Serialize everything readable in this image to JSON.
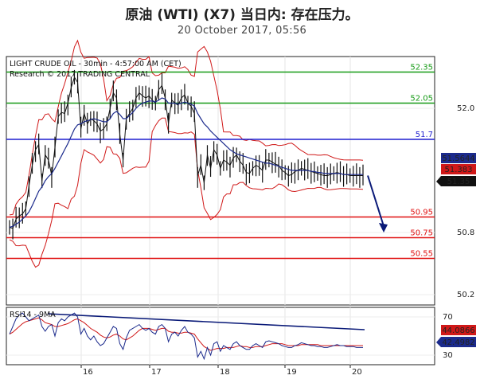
{
  "header": {
    "title": "原油 (WTI) (X7) 当日内: 存在压力。",
    "date": "20 October 2017, 05:56"
  },
  "chart_data": [
    {
      "type": "line",
      "title": "LIGHT CRUDE OIL - 30min - 4:57:00 AM (CET)",
      "subtitle": "Research © 2017 TRADING CENTRAL",
      "x_tick_labels": [
        "16",
        "17",
        "18",
        "19",
        "20"
      ],
      "y_tick_labels": [
        "52.0",
        "50.8",
        "50.2"
      ],
      "ylim": [
        50.1,
        52.5
      ],
      "grid": true,
      "levels": [
        {
          "label": "52.35",
          "value": 52.35,
          "color": "#169a16"
        },
        {
          "label": "52.05",
          "value": 52.05,
          "color": "#169a16"
        },
        {
          "label": "51.7",
          "value": 51.7,
          "color": "#1f1fcf"
        },
        {
          "label": "50.95",
          "value": 50.95,
          "color": "#e01010"
        },
        {
          "label": "50.75",
          "value": 50.75,
          "color": "#e01010"
        },
        {
          "label": "50.55",
          "value": 50.55,
          "color": "#e01010"
        }
      ],
      "price_badges": [
        {
          "label": "51.5644",
          "color": "#1b2a8c"
        },
        {
          "label": "51.383",
          "color": "#d01818"
        },
        {
          "label": "51.35",
          "color": "#111111"
        }
      ],
      "price_x": [
        0,
        1,
        2,
        3,
        4,
        5,
        6,
        7,
        8,
        9,
        10,
        11,
        12,
        13,
        14,
        15,
        16,
        17,
        18,
        19,
        20,
        21,
        22,
        23,
        24,
        25,
        26,
        27,
        28,
        29,
        30,
        31,
        32,
        33,
        34,
        35,
        36,
        37,
        38,
        39,
        40,
        41,
        42,
        43,
        44,
        45,
        46,
        47,
        48,
        49,
        50,
        51,
        52,
        53,
        54,
        55,
        56,
        57,
        58,
        59,
        60,
        61,
        62,
        63,
        64,
        65,
        66,
        67,
        68,
        69,
        70,
        71,
        72,
        73,
        74,
        75,
        76,
        77,
        78,
        79,
        80,
        81,
        82,
        83,
        84,
        85,
        86,
        87,
        88,
        89,
        90,
        91,
        92,
        93,
        94,
        95,
        96,
        97,
        98,
        99,
        100,
        101,
        102,
        103,
        104,
        105,
        106,
        107,
        108,
        109
      ],
      "price_close": [
        50.85,
        50.84,
        50.93,
        50.96,
        50.98,
        51.03,
        51.25,
        51.45,
        51.6,
        51.65,
        51.3,
        51.55,
        51.5,
        51.35,
        51.62,
        51.92,
        51.96,
        51.95,
        52.05,
        52.2,
        52.3,
        52.25,
        51.8,
        51.95,
        51.85,
        51.9,
        51.88,
        51.85,
        51.78,
        51.8,
        51.85,
        52.0,
        52.15,
        52.1,
        51.75,
        51.5,
        51.9,
        51.95,
        52.0,
        52.1,
        52.15,
        52.12,
        52.1,
        52.12,
        52.08,
        52.05,
        52.18,
        52.22,
        52.1,
        51.85,
        52.08,
        52.05,
        52.03,
        52.1,
        52.13,
        52.05,
        52.02,
        51.95,
        51.35,
        51.45,
        51.28,
        51.55,
        51.42,
        51.6,
        51.55,
        51.42,
        51.5,
        51.48,
        51.45,
        51.52,
        51.55,
        51.49,
        51.45,
        51.38,
        51.37,
        51.42,
        51.45,
        51.43,
        51.4,
        51.5,
        51.5,
        51.48,
        51.46,
        51.45,
        51.4,
        51.38,
        51.35,
        51.36,
        51.39,
        51.4,
        51.42,
        51.41,
        51.4,
        51.39,
        51.38,
        51.37,
        51.36,
        51.35,
        51.35,
        51.36,
        51.37,
        51.38,
        51.37,
        51.36,
        51.36,
        51.35,
        51.35,
        51.35,
        51.35,
        51.35
      ],
      "ma_close": [
        50.85,
        50.86,
        50.88,
        50.9,
        50.93,
        50.96,
        51.0,
        51.06,
        51.13,
        51.2,
        51.24,
        51.3,
        51.34,
        51.37,
        51.42,
        51.48,
        51.54,
        51.6,
        51.66,
        51.73,
        51.8,
        51.84,
        51.85,
        51.87,
        51.88,
        51.89,
        51.9,
        51.89,
        51.88,
        51.87,
        51.87,
        51.9,
        51.95,
        51.97,
        51.94,
        51.9,
        51.9,
        51.93,
        51.96,
        52.0,
        52.03,
        52.05,
        52.06,
        52.07,
        52.07,
        52.06,
        52.08,
        52.1,
        52.09,
        52.05,
        52.05,
        52.05,
        52.04,
        52.05,
        52.06,
        52.05,
        52.04,
        52.02,
        51.95,
        51.9,
        51.85,
        51.82,
        51.78,
        51.75,
        51.72,
        51.69,
        51.66,
        51.63,
        51.6,
        51.58,
        51.56,
        51.55,
        51.54,
        51.53,
        51.52,
        51.51,
        51.5,
        51.49,
        51.48,
        51.47,
        51.47,
        51.46,
        51.45,
        51.44,
        51.43,
        51.42,
        51.41,
        51.4,
        51.4,
        51.4,
        51.4,
        51.4,
        51.4,
        51.39,
        51.39,
        51.38,
        51.38,
        51.37,
        51.37,
        51.37,
        51.37,
        51.37,
        51.37,
        51.36,
        51.36,
        51.36,
        51.36,
        51.36,
        51.36,
        51.36
      ],
      "projection": {
        "from": 51.35,
        "to": 50.8
      },
      "rsi": {
        "label": "RSI14 - 9MA",
        "y_tick_labels": [
          "70",
          "30"
        ],
        "ylim": [
          20,
          80
        ],
        "badges": [
          {
            "label": "44.0866",
            "color": "#d01818"
          },
          {
            "label": "42.4982",
            "color": "#1b2a8c"
          }
        ],
        "rsi_values": [
          52,
          60,
          68,
          72,
          74,
          70,
          66,
          68,
          70,
          72,
          60,
          55,
          60,
          62,
          50,
          64,
          68,
          66,
          70,
          72,
          74,
          70,
          52,
          58,
          50,
          46,
          50,
          44,
          40,
          42,
          48,
          54,
          60,
          58,
          42,
          36,
          48,
          56,
          58,
          60,
          62,
          58,
          56,
          58,
          54,
          52,
          60,
          62,
          58,
          44,
          52,
          54,
          50,
          56,
          60,
          54,
          52,
          48,
          28,
          34,
          26,
          38,
          30,
          42,
          44,
          34,
          40,
          38,
          36,
          42,
          44,
          40,
          38,
          36,
          36,
          40,
          42,
          40,
          38,
          44,
          45,
          44,
          43,
          42,
          40,
          39,
          38,
          38,
          40,
          41,
          43,
          42,
          41,
          40,
          40,
          39,
          39,
          38,
          38,
          39,
          40,
          41,
          40,
          40,
          39,
          39,
          39,
          38,
          38,
          38
        ],
        "ma_values": [
          52,
          54,
          57,
          60,
          63,
          65,
          66,
          67,
          68,
          69,
          67,
          64,
          63,
          62,
          60,
          60,
          61,
          62,
          63,
          65,
          67,
          68,
          66,
          64,
          61,
          58,
          56,
          54,
          51,
          49,
          48,
          49,
          51,
          52,
          50,
          47,
          46,
          48,
          50,
          53,
          56,
          58,
          58,
          58,
          57,
          56,
          57,
          58,
          58,
          55,
          54,
          54,
          53,
          53,
          54,
          54,
          53,
          52,
          47,
          43,
          39,
          37,
          35,
          36,
          37,
          37,
          37,
          38,
          38,
          38,
          39,
          40,
          39,
          39,
          38,
          38,
          39,
          39,
          39,
          40,
          41,
          42,
          42,
          42,
          42,
          41,
          40,
          40,
          40,
          40,
          41,
          41,
          41,
          41,
          41,
          41,
          40,
          40,
          40,
          40,
          40,
          40,
          40,
          40,
          40,
          40,
          40,
          40,
          40,
          40
        ]
      }
    }
  ]
}
